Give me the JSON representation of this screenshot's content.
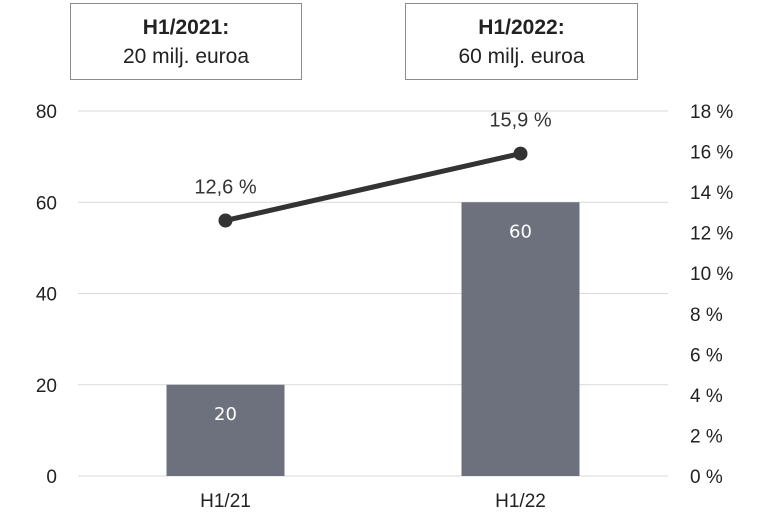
{
  "callouts": [
    {
      "title": "H1/2021:",
      "value": "20 milj. euroa"
    },
    {
      "title": "H1/2022:",
      "value": "60 milj. euroa"
    }
  ],
  "colors": {
    "bar": "#6d717e",
    "line": "#333333",
    "grid": "#d9d9d9"
  },
  "chart_data": {
    "type": "bar",
    "categories": [
      "H1/21",
      "H1/22"
    ],
    "series": [
      {
        "type": "bar",
        "axis": "left",
        "values": [
          20,
          60
        ],
        "data_labels": [
          "20",
          "60"
        ]
      },
      {
        "type": "line",
        "axis": "right",
        "values": [
          12.6,
          15.9
        ],
        "data_labels": [
          "12,6 %",
          "15,9 %"
        ]
      }
    ],
    "ylim_left": [
      0,
      80
    ],
    "yticks_left": [
      "0",
      "20",
      "40",
      "60",
      "80"
    ],
    "ylim_right": [
      0,
      18
    ],
    "yticks_right": [
      "0 %",
      "2 %",
      "4 %",
      "6 %",
      "8 %",
      "10 %",
      "12 %",
      "14 %",
      "16 %",
      "18 %"
    ],
    "grid": true
  }
}
